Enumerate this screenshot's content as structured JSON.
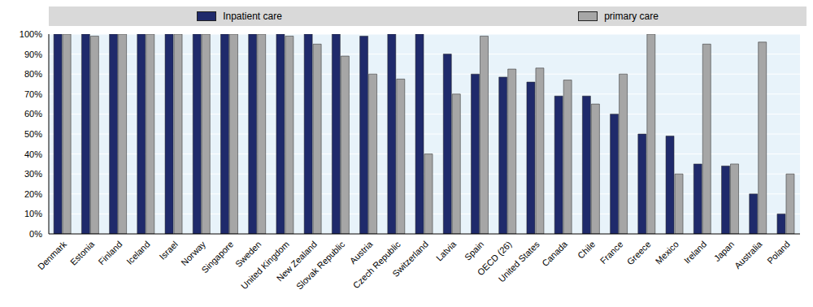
{
  "chart_data": {
    "type": "bar",
    "categories": [
      "Denmark",
      "Estonia",
      "Finland",
      "Iceland",
      "Israel",
      "Norway",
      "Singapore",
      "Sweden",
      "United Kingdom",
      "New Zealand",
      "Slovak Republic",
      "Austria",
      "Czech Republic",
      "Switzerland",
      "Latvia",
      "Spain",
      "OECD (26)",
      "United States",
      "Canada",
      "Chile",
      "France",
      "Greece",
      "Mexico",
      "Ireland",
      "Japan",
      "Australia",
      "Poland"
    ],
    "series": [
      {
        "name": "Inpatient care",
        "color": "#1f2a6b",
        "values": [
          100,
          100,
          100,
          100,
          100,
          100,
          100,
          100,
          100,
          100,
          100,
          99,
          100,
          100,
          90,
          80,
          78.5,
          76,
          69,
          69,
          60,
          50,
          49,
          35,
          34,
          20,
          10
        ]
      },
      {
        "name": "primary care",
        "color": "#a6a6a6",
        "values": [
          100,
          99,
          100,
          100,
          100,
          100,
          100,
          100,
          99,
          95,
          89,
          80,
          77.5,
          40,
          70,
          99,
          82.5,
          83,
          77,
          65,
          80,
          100,
          30,
          95,
          35,
          96,
          30
        ]
      }
    ],
    "ylim": [
      0,
      100
    ],
    "yticks": [
      {
        "value": 0,
        "label": "0%"
      },
      {
        "value": 10,
        "label": "10%"
      },
      {
        "value": 20,
        "label": "20%"
      },
      {
        "value": 30,
        "label": "30%"
      },
      {
        "value": 40,
        "label": "40%"
      },
      {
        "value": 50,
        "label": "50%"
      },
      {
        "value": 60,
        "label": "60%"
      },
      {
        "value": 70,
        "label": "70%"
      },
      {
        "value": 80,
        "label": "80%"
      },
      {
        "value": 90,
        "label": "90%"
      },
      {
        "value": 100,
        "label": "100%"
      }
    ],
    "grid": true,
    "legend": "top"
  }
}
